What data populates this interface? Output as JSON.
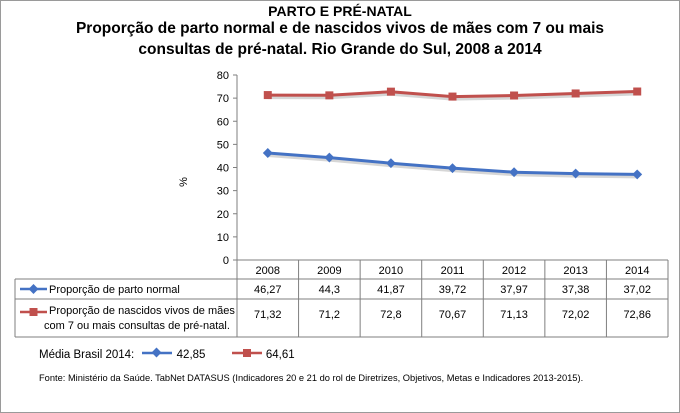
{
  "header": "PARTO E PRÉ-NATAL",
  "chart_data": {
    "type": "line",
    "title_line1": "Proporção de parto normal e de nascidos vivos de mães com 7 ou mais",
    "title_line2": "consultas de pré-natal. Rio Grande do Sul, 2008 a 2014",
    "ylabel": "%",
    "ylim": [
      0,
      80
    ],
    "yticks": [
      "0",
      "10",
      "20",
      "30",
      "40",
      "50",
      "60",
      "70",
      "80"
    ],
    "categories": [
      "2008",
      "2009",
      "2010",
      "2011",
      "2012",
      "2013",
      "2014"
    ],
    "gridlines": false,
    "legend": "data table",
    "series": [
      {
        "name": "Proporção de parto normal",
        "values": [
          46.27,
          44.3,
          41.87,
          39.72,
          37.97,
          37.38,
          37.02
        ],
        "labels": [
          "46,27",
          "44,3",
          "41,87",
          "39,72",
          "37,97",
          "37,38",
          "37,02"
        ],
        "color": "#4472C4",
        "marker": "diamond"
      },
      {
        "name_line1": "Proporção de nascidos vivos de mães",
        "name_line2": "com 7 ou mais consultas de pré-natal.",
        "values": [
          71.32,
          71.2,
          72.8,
          70.67,
          71.13,
          72.02,
          72.86
        ],
        "labels": [
          "71,32",
          "71,2",
          "72,8",
          "70,67",
          "71,13",
          "72,02",
          "72,86"
        ],
        "color": "#C0504D",
        "marker": "square"
      }
    ]
  },
  "footer": {
    "media_label": "Média Brasil 2014:",
    "media_values": [
      "42,85",
      "64,61"
    ],
    "source": "Fonte: Ministério da Saúde. TabNet DATASUS (Indicadores 20 e 21 do rol de Diretrizes, Objetivos, Metas e Indicadores 2013-2015)."
  }
}
